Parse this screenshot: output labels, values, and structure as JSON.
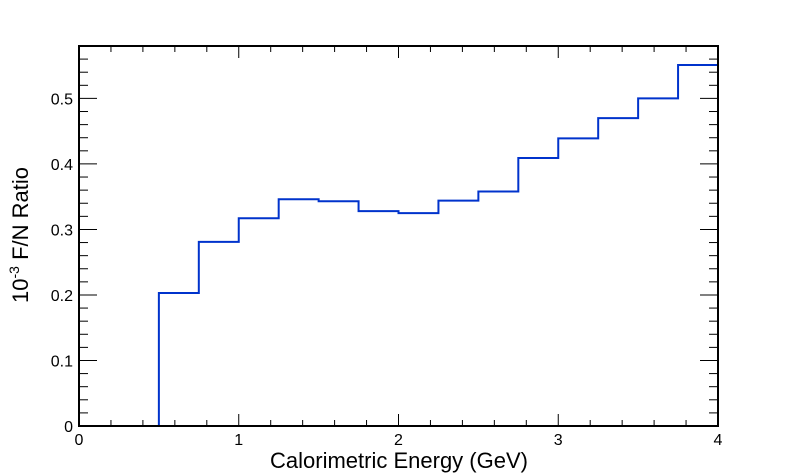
{
  "chart_data": {
    "type": "step",
    "title": "",
    "xlabel": "Calorimetric Energy (GeV)",
    "ylabel_prefix": "10",
    "ylabel_exponent": "-3",
    "ylabel_suffix": " F/N Ratio",
    "xlim": [
      0,
      4
    ],
    "ylim": [
      0,
      0.58
    ],
    "x_ticks": [
      0,
      1,
      2,
      3,
      4
    ],
    "x_tick_labels": [
      "0",
      "1",
      "2",
      "3",
      "4"
    ],
    "y_ticks": [
      0,
      0.1,
      0.2,
      0.3,
      0.4,
      0.5
    ],
    "y_tick_labels": [
      "0",
      "0.1",
      "0.2",
      "0.3",
      "0.4",
      "0.5"
    ],
    "grid": false,
    "legend": "none",
    "line_color": "#0033cc",
    "bin_edges": [
      0,
      0.25,
      0.5,
      0.75,
      1.0,
      1.25,
      1.5,
      1.75,
      2.0,
      2.25,
      2.5,
      2.75,
      3.0,
      3.25,
      3.5,
      3.75,
      4.0
    ],
    "values": [
      0.0,
      0.0,
      0.203,
      0.281,
      0.317,
      0.346,
      0.343,
      0.328,
      0.325,
      0.344,
      0.358,
      0.409,
      0.439,
      0.47,
      0.5,
      0.551
    ]
  }
}
